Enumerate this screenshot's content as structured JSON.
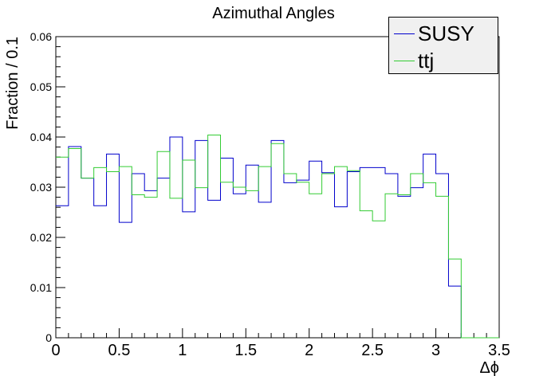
{
  "chart_data": {
    "type": "step",
    "title": "Azimuthal Angles",
    "xlabel": "Δϕ",
    "ylabel": "Fraction / 0.1",
    "xlim": [
      0,
      3.5
    ],
    "ylim": [
      0,
      0.06
    ],
    "bin_width": 0.1,
    "x_ticks": [
      "0",
      "0.5",
      "1",
      "1.5",
      "2",
      "2.5",
      "3",
      "3.5"
    ],
    "y_ticks": [
      "0",
      "0.01",
      "0.02",
      "0.03",
      "0.04",
      "0.05",
      "0.06"
    ],
    "legend_position": "top-right",
    "series": [
      {
        "name": "SUSY",
        "color": "#0000cc",
        "values": [
          0.0263,
          0.0381,
          0.0318,
          0.0263,
          0.0366,
          0.023,
          0.0327,
          0.0293,
          0.0318,
          0.04,
          0.0251,
          0.0393,
          0.0274,
          0.0358,
          0.0287,
          0.0344,
          0.027,
          0.0393,
          0.0309,
          0.0314,
          0.0352,
          0.0329,
          0.0261,
          0.0331,
          0.0339,
          0.0339,
          0.0327,
          0.0282,
          0.0299,
          0.0366,
          0.0327,
          0.0103,
          0,
          0,
          0
        ]
      },
      {
        "name": "ttj",
        "color": "#33cc33",
        "values": [
          0.036,
          0.0377,
          0.0318,
          0.0339,
          0.0331,
          0.0341,
          0.0285,
          0.028,
          0.0371,
          0.0278,
          0.0354,
          0.0299,
          0.0404,
          0.031,
          0.03,
          0.0293,
          0.0341,
          0.0387,
          0.0327,
          0.031,
          0.0287,
          0.0327,
          0.0341,
          0.0333,
          0.0253,
          0.0233,
          0.0287,
          0.0285,
          0.0327,
          0.0309,
          0.0282,
          0.0157,
          0,
          0,
          0
        ]
      }
    ]
  }
}
